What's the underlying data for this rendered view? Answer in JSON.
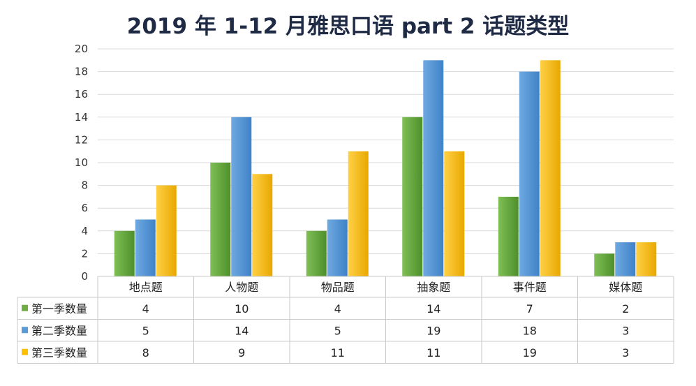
{
  "chart_data": {
    "type": "bar",
    "title": "2019 年 1-12 月雅思口语 part 2 话题类型",
    "categories": [
      "地点题",
      "人物题",
      "物品题",
      "抽象题",
      "事件题",
      "媒体题"
    ],
    "series": [
      {
        "name": "第一季数量",
        "values": [
          4,
          10,
          4,
          14,
          7,
          2
        ],
        "color": "#70ad47"
      },
      {
        "name": "第二季数量",
        "values": [
          5,
          14,
          5,
          19,
          18,
          3
        ],
        "color": "#5b9bd5"
      },
      {
        "name": "第三季数量",
        "values": [
          8,
          9,
          11,
          11,
          19,
          3
        ],
        "color": "#ffc000"
      }
    ],
    "ylim": [
      0,
      20
    ],
    "yticks": [
      0,
      2,
      4,
      6,
      8,
      10,
      12,
      14,
      16,
      18,
      20
    ],
    "grid": true,
    "legend": "data-table-left"
  }
}
